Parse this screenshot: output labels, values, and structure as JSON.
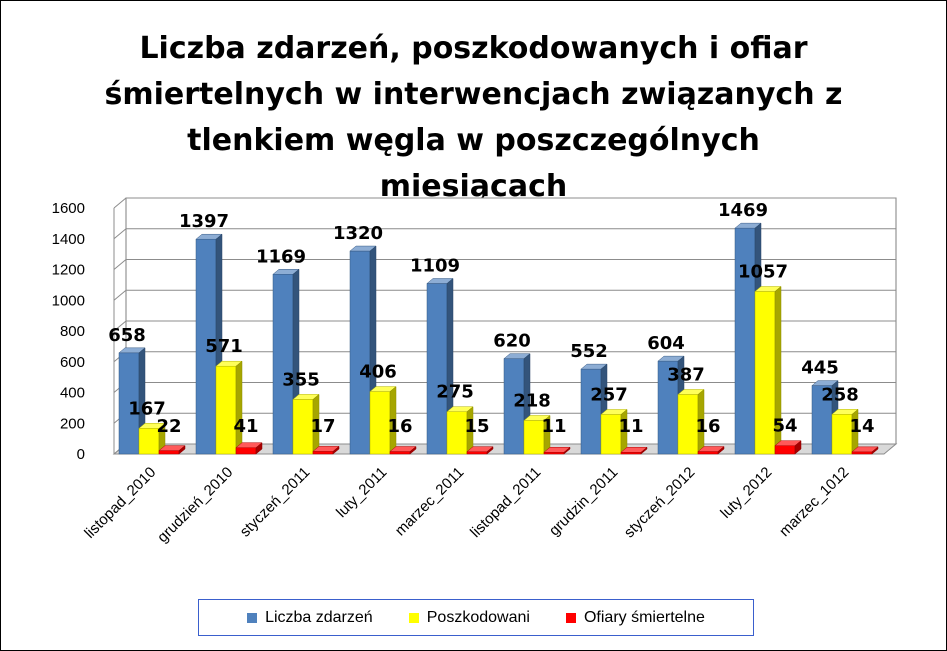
{
  "chart_data": {
    "type": "bar",
    "title": "Liczba zdarzeń, poszkodowanych i ofiar\nśmiertelnych w interwencjach związanych z\ntlenkiem węgla w poszczególnych miesiącach",
    "categories": [
      "listopad_2010",
      "grudzień_2010",
      "styczeń_2011",
      "luty_2011",
      "marzec_2011",
      "listopad_2011",
      "grudzin_2011",
      "styczeń_2012",
      "luty_2012",
      "marzec_1012"
    ],
    "series": [
      {
        "name": "Liczba zdarzeń",
        "color": "#4f81bd",
        "values": [
          658,
          1397,
          1169,
          1320,
          1109,
          620,
          552,
          604,
          1469,
          445
        ]
      },
      {
        "name": "Poszkodowani",
        "color": "#ffff00",
        "values": [
          167,
          571,
          355,
          406,
          275,
          218,
          257,
          387,
          1057,
          258
        ]
      },
      {
        "name": "Ofiary śmiertelne",
        "color": "#ff0000",
        "values": [
          22,
          41,
          17,
          16,
          15,
          11,
          11,
          16,
          54,
          14
        ]
      }
    ],
    "yticks": [
      0,
      200,
      400,
      600,
      800,
      1000,
      1200,
      1400,
      1600
    ],
    "ylim": [
      0,
      1600
    ],
    "grid": true,
    "legend": "bottom",
    "chart_style": "3d clustered column"
  }
}
